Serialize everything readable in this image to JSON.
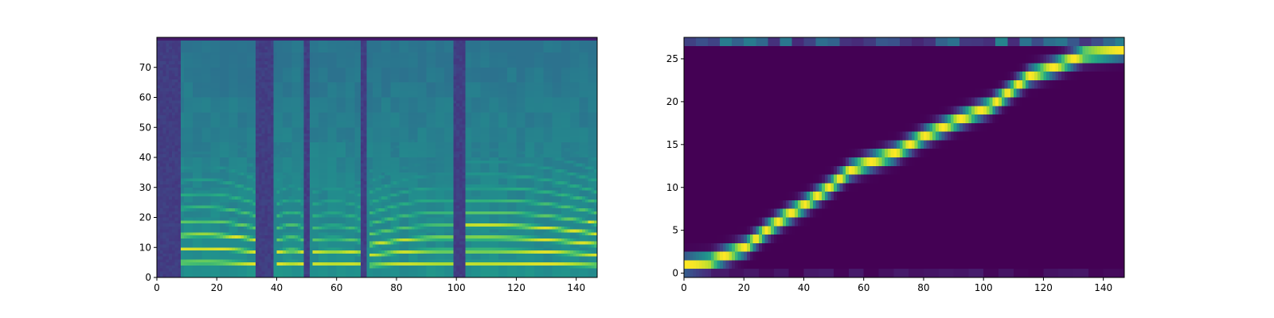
{
  "chart_data": [
    {
      "type": "heatmap",
      "title": "",
      "xlabel": "",
      "ylabel": "",
      "colormap": "viridis",
      "xlim": [
        0,
        147
      ],
      "ylim": [
        0,
        80
      ],
      "x_ticks": [
        0,
        20,
        40,
        60,
        80,
        100,
        120,
        140
      ],
      "y_ticks": [
        0,
        10,
        20,
        30,
        40,
        50,
        60,
        70
      ],
      "n_frames": 147,
      "n_bins": 80,
      "silence_frames": [
        [
          0,
          8
        ],
        [
          33,
          39
        ],
        [
          49,
          51
        ],
        [
          68,
          70
        ],
        [
          99,
          103
        ]
      ],
      "voiced_segments": [
        {
          "x": [
            8,
            33
          ],
          "f0_bins": [
            4.5,
            4.0
          ],
          "harmonics_to": 16,
          "strength": 0.95
        },
        {
          "x": [
            40,
            49
          ],
          "f0_bins": [
            4.0,
            4.0
          ],
          "harmonics_to": 12,
          "strength": 0.95
        },
        {
          "x": [
            52,
            68
          ],
          "f0_bins": [
            4.0,
            3.8
          ],
          "harmonics_to": 11,
          "strength": 0.9
        },
        {
          "x": [
            71,
            99
          ],
          "f0_bins": [
            3.5,
            4.2
          ],
          "harmonics_to": 14,
          "strength": 0.9
        },
        {
          "x": [
            103,
            147
          ],
          "f0_bins": [
            4.2,
            3.5
          ],
          "harmonics_to": 18,
          "strength": 0.95
        }
      ]
    },
    {
      "type": "heatmap",
      "title": "",
      "xlabel": "",
      "ylabel": "",
      "colormap": "viridis",
      "xlim": [
        0,
        147
      ],
      "ylim": [
        -0.5,
        27.5
      ],
      "x_ticks": [
        0,
        20,
        40,
        60,
        80,
        100,
        120,
        140
      ],
      "y_ticks": [
        0,
        5,
        10,
        15,
        20,
        25
      ],
      "n_frames": 147,
      "n_tokens": 28,
      "alignment_path": [
        [
          0,
          1
        ],
        [
          8,
          1.3
        ],
        [
          13,
          2
        ],
        [
          20,
          3
        ],
        [
          27,
          5
        ],
        [
          33,
          6.5
        ],
        [
          40,
          8
        ],
        [
          48,
          10
        ],
        [
          55,
          12
        ],
        [
          62,
          13
        ],
        [
          70,
          14
        ],
        [
          80,
          16
        ],
        [
          92,
          18
        ],
        [
          102,
          19.5
        ],
        [
          115,
          23
        ],
        [
          123,
          24
        ],
        [
          133,
          25.5
        ],
        [
          147,
          26
        ]
      ],
      "alignment_width_tokens": 0.9
    }
  ]
}
